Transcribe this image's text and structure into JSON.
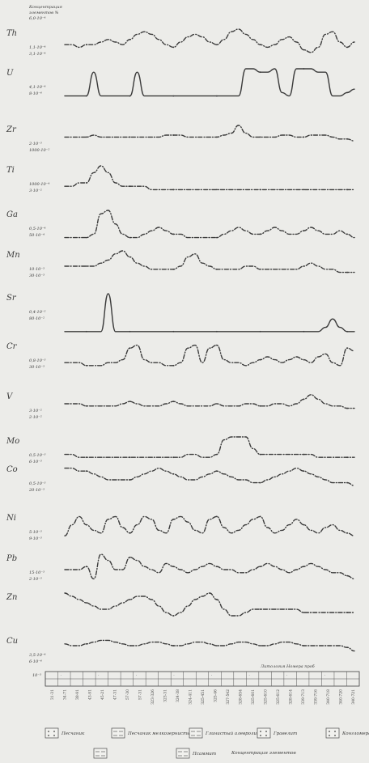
{
  "chart_data": {
    "type": "line",
    "header": [
      "Концентрация",
      "элементов %",
      "6,0·10⁻⁴"
    ],
    "x": [
      0,
      1,
      2,
      3,
      4,
      5,
      6,
      7,
      8,
      9,
      10,
      11,
      12,
      13,
      14,
      15,
      16,
      17,
      18,
      19,
      20,
      21,
      22,
      23,
      24,
      25,
      26,
      27,
      28,
      29,
      30,
      31,
      32,
      33,
      34,
      35,
      36,
      37,
      38,
      39,
      40
    ],
    "series": [
      {
        "name": "Th",
        "scale": [
          "1,1·10⁻⁴",
          "3,1·10⁻⁴"
        ],
        "values": [
          4,
          4,
          3,
          4,
          4,
          5,
          6,
          5,
          4,
          6,
          8,
          9,
          8,
          6,
          4,
          3,
          5,
          7,
          8,
          7,
          5,
          4,
          6,
          9,
          10,
          8,
          6,
          4,
          3,
          4,
          6,
          7,
          5,
          2,
          1,
          3,
          8,
          9,
          5,
          3,
          5
        ],
        "solid": false
      },
      {
        "name": "U",
        "scale": [
          "4,1·10⁻⁴",
          "8·10⁻⁴"
        ],
        "values": [
          2,
          2,
          2,
          2,
          9,
          2,
          2,
          2,
          2,
          2,
          9,
          2,
          2,
          2,
          2,
          2,
          2,
          2,
          2,
          2,
          2,
          2,
          2,
          2,
          2,
          10,
          10,
          9,
          9,
          10,
          3,
          2,
          10,
          10,
          10,
          9,
          9,
          2,
          2,
          3,
          4
        ],
        "solid": true
      },
      {
        "name": "Zr",
        "scale": [
          "2·10⁻³",
          "1000·10⁻²"
        ],
        "values": [
          4,
          4,
          4,
          4,
          5,
          4,
          4,
          4,
          4,
          4,
          4,
          4,
          4,
          4,
          5,
          5,
          5,
          4,
          4,
          4,
          4,
          4,
          5,
          6,
          10,
          6,
          4,
          4,
          4,
          4,
          5,
          5,
          4,
          4,
          5,
          5,
          5,
          4,
          3,
          3,
          2
        ],
        "solid": false
      },
      {
        "name": "Ti",
        "scale": [
          "1000·10⁻⁴",
          "3·10⁻²"
        ],
        "values": [
          4,
          4,
          5,
          5,
          8,
          10,
          8,
          5,
          4,
          4,
          4,
          4,
          3,
          3,
          3,
          3,
          3,
          3,
          3,
          3,
          3,
          3,
          3,
          3,
          3,
          3,
          3,
          3,
          3,
          3,
          3,
          3,
          3,
          3,
          3,
          3,
          3,
          3,
          3,
          3,
          3
        ],
        "solid": false
      },
      {
        "name": "Ga",
        "scale": [
          "0,5·10⁻⁴",
          "50·10⁻⁴"
        ],
        "values": [
          2,
          2,
          2,
          2,
          3,
          9,
          10,
          6,
          3,
          2,
          2,
          3,
          4,
          5,
          4,
          3,
          3,
          2,
          2,
          2,
          2,
          2,
          3,
          4,
          5,
          4,
          3,
          3,
          4,
          5,
          4,
          3,
          3,
          4,
          5,
          4,
          3,
          3,
          4,
          3,
          2
        ],
        "solid": false
      },
      {
        "name": "Mn",
        "scale": [
          "10·10⁻³",
          "30·10⁻³"
        ],
        "values": [
          5,
          5,
          5,
          5,
          5,
          6,
          7,
          9,
          10,
          8,
          6,
          5,
          4,
          4,
          4,
          4,
          5,
          8,
          9,
          6,
          5,
          4,
          4,
          4,
          4,
          5,
          5,
          4,
          4,
          4,
          4,
          4,
          4,
          5,
          6,
          5,
          4,
          4,
          3,
          3,
          3
        ],
        "solid": false
      },
      {
        "name": "Sr",
        "scale": [
          "0,4·10⁻²",
          "80·10⁻²"
        ],
        "values": [
          1,
          1,
          1,
          1,
          1,
          1,
          10,
          1,
          1,
          1,
          1,
          1,
          1,
          1,
          1,
          1,
          1,
          1,
          1,
          1,
          1,
          1,
          1,
          1,
          1,
          1,
          1,
          1,
          1,
          1,
          1,
          1,
          1,
          1,
          1,
          1,
          2,
          4,
          2,
          1,
          1
        ],
        "solid": true
      },
      {
        "name": "Cr",
        "scale": [
          "0,8·10⁻³",
          "30·10⁻³"
        ],
        "values": [
          3,
          3,
          3,
          2,
          2,
          2,
          3,
          3,
          4,
          8,
          9,
          4,
          3,
          3,
          2,
          2,
          3,
          8,
          9,
          3,
          8,
          9,
          4,
          3,
          3,
          2,
          3,
          4,
          5,
          4,
          3,
          4,
          5,
          4,
          3,
          5,
          6,
          3,
          2,
          8,
          7
        ],
        "solid": false
      },
      {
        "name": "V",
        "scale": [
          "3·10⁻²",
          "2·10⁻²"
        ],
        "values": [
          5,
          5,
          5,
          4,
          4,
          4,
          4,
          4,
          5,
          6,
          5,
          4,
          4,
          4,
          5,
          6,
          5,
          4,
          4,
          4,
          4,
          5,
          4,
          4,
          4,
          5,
          5,
          4,
          4,
          5,
          5,
          4,
          5,
          7,
          9,
          7,
          5,
          4,
          4,
          3,
          3
        ],
        "solid": false
      },
      {
        "name": "Mo",
        "scale": [
          "0,5·10⁻³",
          "6·10⁻³"
        ],
        "values": [
          4,
          4,
          3,
          3,
          3,
          3,
          3,
          3,
          3,
          3,
          3,
          3,
          3,
          3,
          3,
          3,
          3,
          4,
          4,
          3,
          3,
          4,
          9,
          10,
          10,
          10,
          6,
          4,
          4,
          4,
          4,
          4,
          4,
          4,
          4,
          3,
          3,
          3,
          3,
          3,
          3
        ],
        "solid": false
      },
      {
        "name": "Co",
        "scale": [
          "0,5·10⁻³",
          "20·10⁻³"
        ],
        "values": [
          9,
          9,
          8,
          8,
          7,
          6,
          5,
          5,
          5,
          5,
          6,
          7,
          8,
          9,
          8,
          7,
          6,
          5,
          5,
          6,
          7,
          8,
          7,
          6,
          5,
          5,
          4,
          4,
          5,
          6,
          7,
          8,
          9,
          8,
          7,
          6,
          5,
          4,
          4,
          4,
          3
        ],
        "solid": false
      },
      {
        "name": "Ni",
        "scale": [
          "5·10⁻³",
          "9·10⁻³"
        ],
        "values": [
          2,
          6,
          9,
          6,
          4,
          3,
          8,
          9,
          5,
          3,
          6,
          9,
          8,
          4,
          3,
          8,
          9,
          7,
          4,
          3,
          8,
          9,
          5,
          3,
          4,
          6,
          8,
          9,
          5,
          3,
          4,
          6,
          8,
          6,
          4,
          3,
          5,
          6,
          4,
          3,
          2
        ],
        "solid": false
      },
      {
        "name": "Pb",
        "scale": [
          "15·10⁻³",
          "2·10⁻³"
        ],
        "values": [
          5,
          5,
          5,
          6,
          2,
          10,
          8,
          5,
          5,
          9,
          8,
          6,
          5,
          4,
          7,
          6,
          5,
          4,
          5,
          6,
          7,
          6,
          5,
          5,
          4,
          4,
          5,
          6,
          7,
          6,
          5,
          4,
          5,
          6,
          7,
          6,
          5,
          4,
          4,
          3,
          2
        ],
        "solid": false
      },
      {
        "name": "Zn",
        "scale": [],
        "values": [
          10,
          9,
          8,
          7,
          6,
          5,
          5,
          6,
          7,
          8,
          9,
          9,
          8,
          6,
          4,
          3,
          4,
          6,
          8,
          9,
          10,
          8,
          5,
          3,
          3,
          4,
          5,
          5,
          5,
          5,
          5,
          5,
          5,
          4,
          4,
          4,
          4,
          4,
          4,
          4,
          4
        ],
        "solid": false
      },
      {
        "name": "Cu",
        "scale": [
          "3,5·10⁻⁴",
          "6·10⁻⁴"
        ],
        "values": [
          6,
          5,
          5,
          6,
          7,
          8,
          8,
          7,
          6,
          5,
          5,
          6,
          7,
          7,
          6,
          5,
          5,
          6,
          7,
          7,
          6,
          5,
          5,
          6,
          7,
          7,
          6,
          5,
          5,
          6,
          7,
          7,
          6,
          5,
          5,
          5,
          5,
          5,
          5,
          4,
          2
        ],
        "solid": false
      }
    ],
    "bottom_axis_label": "10⁻³",
    "column_header": "Литология   Номера проб",
    "sample_labels": [
      "31-31",
      "34-71",
      "38-91",
      "43-91",
      "45-21",
      "47-31",
      "57-30",
      "57-31",
      "323-326",
      "323-31",
      "324-38",
      "324-411",
      "325-451",
      "325-46",
      "327-542",
      "328-654",
      "325-601",
      "325-610",
      "325-612",
      "328-614",
      "339-713",
      "339-716",
      "340-718",
      "340-720",
      "340-721"
    ],
    "legend": [
      {
        "name": "Песчаник",
        "icon": "sand-pattern-icon"
      },
      {
        "name": "Песчаник мелкозернистый",
        "icon": "fine-sand-pattern-icon"
      },
      {
        "name": "Глинистый алевролит",
        "icon": "clay-siltstone-pattern-icon"
      },
      {
        "name": "Гравелит",
        "icon": "gravel-pattern-icon"
      },
      {
        "name": "Конгломерат",
        "icon": "conglomerate-pattern-icon"
      },
      {
        "name": "",
        "icon": "dashed-pattern-icon"
      },
      {
        "name": "Псаммит",
        "icon": "psammite-pattern-icon"
      },
      {
        "name": "Концентрация элементов",
        "icon": "concentration-text"
      }
    ]
  }
}
